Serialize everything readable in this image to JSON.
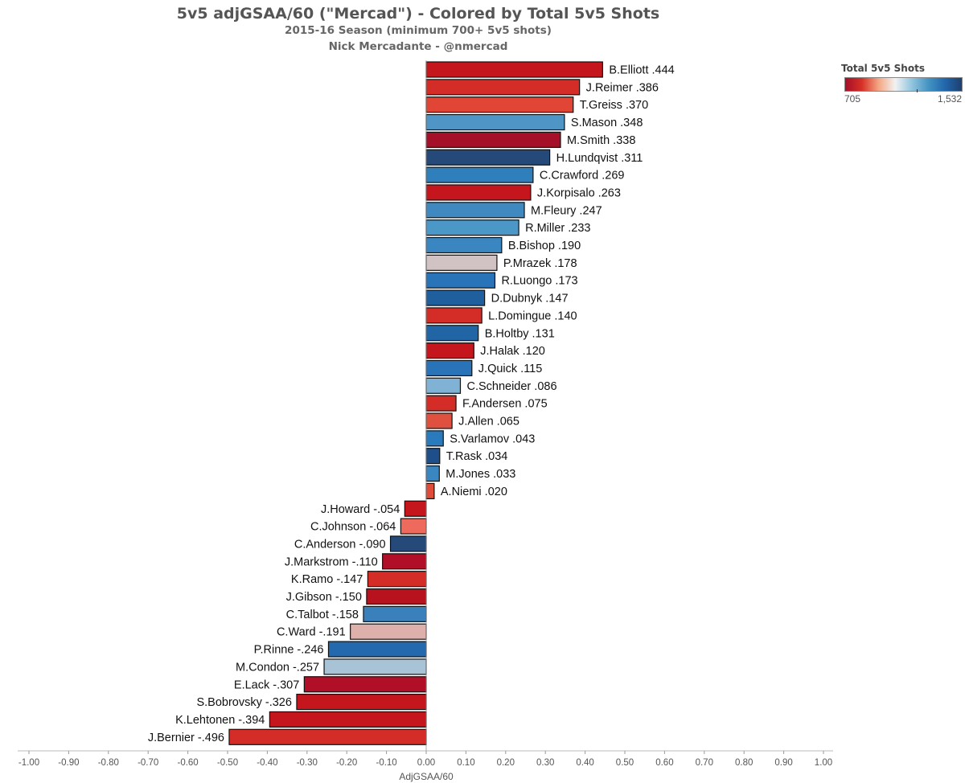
{
  "header": {
    "title": "5v5 adjGSAA/60 (\"Mercad\") - Colored by Total 5v5 Shots",
    "subtitle": "2015-16 Season (minimum 700+ 5v5 shots)",
    "author": "Nick Mercadante - @nmercad"
  },
  "legend": {
    "title": "Total 5v5 Shots",
    "min_label": "705",
    "max_label": "1,532",
    "colors": [
      "#a50f27",
      "#d73027",
      "#f4a582",
      "#f2f2f2",
      "#92c5de",
      "#4393c3",
      "#2166ac",
      "#1f3f6e"
    ]
  },
  "chart_data": {
    "type": "bar",
    "orientation": "horizontal",
    "title": "5v5 adjGSAA/60 (\"Mercad\") - Colored by Total 5v5 Shots",
    "xlabel": "AdjGSAA/60",
    "xlim": [
      -1.0,
      1.0
    ],
    "x_ticks": [
      "-1.00",
      "-0.90",
      "-0.80",
      "-0.70",
      "-0.60",
      "-0.50",
      "-0.40",
      "-0.30",
      "-0.20",
      "-0.10",
      "0.00",
      "0.10",
      "0.20",
      "0.30",
      "0.40",
      "0.50",
      "0.60",
      "0.70",
      "0.80",
      "0.90",
      "1.00"
    ],
    "grid": false,
    "legend_position": "top-right",
    "categories": [
      "B.Elliott",
      "J.Reimer",
      "T.Greiss",
      "S.Mason",
      "M.Smith",
      "H.Lundqvist",
      "C.Crawford",
      "J.Korpisalo",
      "M.Fleury",
      "R.Miller",
      "B.Bishop",
      "P.Mrazek",
      "R.Luongo",
      "D.Dubnyk",
      "L.Domingue",
      "B.Holtby",
      "J.Halak",
      "J.Quick",
      "C.Schneider",
      "F.Andersen",
      "J.Allen",
      "S.Varlamov",
      "T.Rask",
      "M.Jones",
      "A.Niemi",
      "J.Howard",
      "C.Johnson",
      "C.Anderson",
      "J.Markstrom",
      "K.Ramo",
      "J.Gibson",
      "C.Talbot",
      "C.Ward",
      "P.Rinne",
      "M.Condon",
      "E.Lack",
      "S.Bobrovsky",
      "K.Lehtonen",
      "J.Bernier"
    ],
    "value_labels": [
      ".444",
      ".386",
      ".370",
      ".348",
      ".338",
      ".311",
      ".269",
      ".263",
      ".247",
      ".233",
      ".190",
      ".178",
      ".173",
      ".147",
      ".140",
      ".131",
      ".120",
      ".115",
      ".086",
      ".075",
      ".065",
      ".043",
      ".034",
      ".033",
      ".020",
      "-.054",
      "-.064",
      "-.090",
      "-.110",
      "-.147",
      "-.150",
      "-.158",
      "-.191",
      "-.246",
      "-.257",
      "-.307",
      "-.326",
      "-.394",
      "-.496"
    ],
    "values": [
      0.444,
      0.386,
      0.37,
      0.348,
      0.338,
      0.311,
      0.269,
      0.263,
      0.247,
      0.233,
      0.19,
      0.178,
      0.173,
      0.147,
      0.14,
      0.131,
      0.12,
      0.115,
      0.086,
      0.075,
      0.065,
      0.043,
      0.034,
      0.033,
      0.02,
      -0.054,
      -0.064,
      -0.09,
      -0.11,
      -0.147,
      -0.15,
      -0.158,
      -0.191,
      -0.246,
      -0.257,
      -0.307,
      -0.326,
      -0.394,
      -0.496
    ],
    "bar_colors": [
      "#c4161c",
      "#d42d27",
      "#e04535",
      "#4f96c6",
      "#a50f27",
      "#254a7a",
      "#2f7fbc",
      "#c4161c",
      "#3f89c0",
      "#4a97c8",
      "#3a86c0",
      "#d1c3c3",
      "#2974b8",
      "#1f5f9e",
      "#d42d27",
      "#2265a5",
      "#c4161c",
      "#2974b8",
      "#7fb2d4",
      "#d42d27",
      "#e0503f",
      "#2a7bbd",
      "#1f4f8a",
      "#3a86c0",
      "#e04c3a",
      "#c4161c",
      "#ee6a5c",
      "#254a7a",
      "#b10f27",
      "#d42d27",
      "#b8121f",
      "#3a80bb",
      "#deb0ab",
      "#2469ad",
      "#a9c3d6",
      "#b10f27",
      "#c4161c",
      "#c4161c",
      "#d42d27"
    ]
  }
}
